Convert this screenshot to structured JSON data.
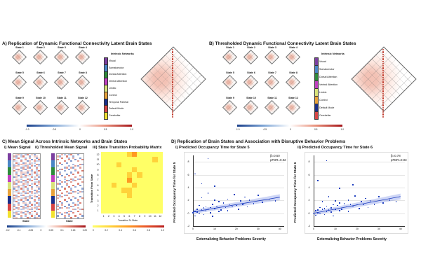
{
  "panelA": {
    "title": "A) Replication of Dynamic Functional Connectivity Latent Brain States",
    "states": [
      "State 1",
      "State 2",
      "State 3",
      "State 4",
      "State 5",
      "State 6",
      "State 7",
      "State 8",
      "State 9",
      "State 10",
      "State 11",
      "State 12"
    ],
    "networks_title": "Intrinsic Networks",
    "networks": [
      "Visual",
      "Somatomotor",
      "Dorsal Attention",
      "Ventral Attention",
      "Limbic",
      "Control",
      "Temporal Parietal",
      "Default Mode",
      "Cerebellar"
    ],
    "colorbar_ticks": [
      "-1.0",
      "-0.5",
      "0",
      "0.5",
      "1.0"
    ]
  },
  "panelB": {
    "title": "B) Thresholded Dynamic Functional Connectivity Latent Brain States",
    "states": [
      "State 1",
      "State 2",
      "State 3",
      "State 4",
      "State 5",
      "State 6",
      "State 7",
      "State 8",
      "State 9",
      "State 10",
      "State 11",
      "State 12"
    ],
    "networks_title": "Intrinsic Networks",
    "networks": [
      "Visual",
      "Somatomotor",
      "Dorsal Attention",
      "Ventral Attention",
      "Limbic",
      "Control",
      "Default Mode",
      "Cerebellar"
    ],
    "colorbar_ticks": [
      "-1.0",
      "-0.5",
      "0",
      "0.5",
      "1.0"
    ]
  },
  "network_colors": [
    "#7b3fa0",
    "#4a86c6",
    "#2e8b3a",
    "#c040c0",
    "#d8e27a",
    "#e8a23a",
    "#1a2f8a",
    "#d64545",
    "#f2e230"
  ],
  "panelC": {
    "title": "C) Mean Signal Across Intrinsic Networks and Brain States",
    "sub_i": "i) Mean Signal",
    "sub_ii": "ii) Thresholded Mean Signal",
    "sub_iii": "iii) State Transition Probability Matrix",
    "xlabel_state": "State",
    "colorbar_i_ticks": [
      "-0.2",
      "-0.1",
      "-0.05",
      "0",
      "0.05",
      "0.1",
      "0.15",
      "0.20"
    ],
    "colorbar_iii_ticks": [
      "0",
      "0.2",
      "0.4",
      "0.6",
      "0.8",
      "1.0"
    ],
    "transition_ylabel": "Transition From State",
    "transition_xlabel": "Transition To State",
    "transition_ticks": [
      "1",
      "2",
      "3",
      "4",
      "5",
      "6",
      "7",
      "8",
      "9",
      "10",
      "11",
      "12"
    ]
  },
  "panelD": {
    "title": "D) Replication of Brain States and Association with Disruptive Behavior Problems",
    "plots": [
      {
        "subtitle": "i) Predicted Occupancy Time for State 5",
        "beta": "β=0.60",
        "p": "pFDR=0.02",
        "ylabel": "Predicted Occupancy Time for State 5",
        "xlabel": "Externalizing Behavior Problems Severity"
      },
      {
        "subtitle": "ii) Predicted Occupancy Time for State 6",
        "beta": "β=0.78",
        "p": "pFDR=0.03",
        "ylabel": "Predicted Occupancy Time for State 6",
        "xlabel": "Externalizing Behavior Problems Severity"
      }
    ],
    "x_ticks": [
      "0",
      "10",
      "20",
      "30",
      "40"
    ],
    "y_ticks": [
      "-2",
      "0",
      "2",
      "4",
      "6",
      "8"
    ]
  },
  "chart_data": [
    {
      "type": "heatmap",
      "title": "iii) State Transition Probability Matrix",
      "xlabel": "Transition To State",
      "ylabel": "Transition From State",
      "categories": [
        "1",
        "2",
        "3",
        "4",
        "5",
        "6",
        "7",
        "8",
        "9",
        "10",
        "11",
        "12"
      ],
      "values": [
        [
          0.1,
          0.1,
          0.1,
          0.1,
          0.2,
          0.3,
          0.6,
          0.2,
          0.1,
          0.1,
          0.1,
          0.1
        ],
        [
          0.1,
          0.2,
          0.1,
          0.1,
          0.1,
          0.2,
          0.2,
          0.1,
          0.1,
          0.1,
          0.3,
          0.1
        ],
        [
          0.1,
          0.1,
          0.1,
          0.3,
          0.2,
          0.1,
          0.1,
          0.1,
          0.2,
          0.1,
          0.1,
          0.1
        ],
        [
          0.2,
          0.1,
          0.1,
          0.1,
          0.1,
          0.1,
          0.3,
          0.1,
          0.1,
          0.1,
          0.1,
          0.2
        ],
        [
          0.1,
          0.1,
          0.1,
          0.1,
          0.2,
          0.3,
          0.1,
          0.4,
          0.1,
          0.1,
          0.1,
          0.1
        ],
        [
          0.1,
          0.1,
          0.1,
          0.2,
          0.1,
          0.5,
          0.1,
          0.1,
          0.1,
          0.2,
          0.1,
          0.1
        ],
        [
          0.1,
          0.1,
          0.3,
          0.1,
          0.1,
          0.1,
          0.4,
          0.1,
          0.1,
          0.1,
          0.1,
          0.1
        ],
        [
          0.1,
          0.1,
          0.1,
          0.1,
          0.4,
          0.3,
          0.1,
          0.1,
          0.1,
          0.1,
          0.1,
          0.1
        ],
        [
          0.1,
          0.1,
          0.1,
          0.1,
          0.1,
          0.3,
          0.1,
          0.1,
          0.1,
          0.1,
          0.1,
          0.1
        ],
        [
          0.1,
          0.1,
          0.2,
          0.1,
          0.1,
          0.1,
          0.1,
          0.1,
          0.1,
          0.2,
          0.1,
          0.1
        ],
        [
          0.1,
          0.1,
          0.1,
          0.1,
          0.1,
          0.2,
          0.1,
          0.1,
          0.1,
          0.1,
          0.1,
          0.1
        ],
        [
          0.1,
          0.2,
          0.1,
          0.1,
          0.1,
          0.1,
          0.1,
          0.1,
          0.1,
          0.1,
          0.1,
          0.1
        ]
      ],
      "colorscale": [
        "#ffff66",
        "#ffd23a",
        "#ff9a22",
        "#e8552a",
        "#b81f1f"
      ]
    },
    {
      "type": "scatter",
      "title": "i) Predicted Occupancy Time for State 5",
      "xlabel": "Externalizing Behavior Problems Severity",
      "ylabel": "Predicted Occupancy Time for State 5",
      "xlim": [
        0,
        42
      ],
      "ylim": [
        -2,
        9
      ],
      "fit": {
        "x": [
          0,
          40
        ],
        "y": [
          0.2,
          2.5
        ]
      },
      "points": [
        [
          0,
          0.1
        ],
        [
          1,
          0.3
        ],
        [
          1,
          -0.4
        ],
        [
          2,
          0.6
        ],
        [
          2,
          0.2
        ],
        [
          3,
          1.2
        ],
        [
          3,
          0.0
        ],
        [
          4,
          0.5
        ],
        [
          4,
          2.4
        ],
        [
          5,
          0.8
        ],
        [
          5,
          -0.2
        ],
        [
          6,
          1.0
        ],
        [
          6,
          0.4
        ],
        [
          7,
          3.1
        ],
        [
          7,
          0.6
        ],
        [
          8,
          0.9
        ],
        [
          8,
          0.1
        ],
        [
          9,
          1.4
        ],
        [
          9,
          -0.5
        ],
        [
          10,
          0.7
        ],
        [
          10,
          2.0
        ],
        [
          11,
          1.1
        ],
        [
          12,
          0.3
        ],
        [
          12,
          1.8
        ],
        [
          13,
          0.5
        ],
        [
          14,
          1.6
        ],
        [
          15,
          0.9
        ],
        [
          16,
          2.2
        ],
        [
          16,
          0.4
        ],
        [
          17,
          1.3
        ],
        [
          18,
          1.0
        ],
        [
          19,
          2.9
        ],
        [
          20,
          1.2
        ],
        [
          21,
          0.6
        ],
        [
          22,
          1.9
        ],
        [
          23,
          1.4
        ],
        [
          24,
          2.5
        ],
        [
          25,
          1.0
        ],
        [
          26,
          2.0
        ],
        [
          28,
          1.5
        ],
        [
          30,
          2.8
        ],
        [
          32,
          1.7
        ],
        [
          35,
          2.1
        ],
        [
          38,
          1.9
        ],
        [
          7,
          8.5
        ],
        [
          4,
          4.6
        ],
        [
          10,
          4.2
        ],
        [
          1,
          6.1
        ]
      ]
    },
    {
      "type": "scatter",
      "title": "ii) Predicted Occupancy Time for State 6",
      "xlabel": "Externalizing Behavior Problems Severity",
      "ylabel": "Predicted Occupancy Time for State 6",
      "xlim": [
        0,
        42
      ],
      "ylim": [
        -2,
        9
      ],
      "fit": {
        "x": [
          0,
          40
        ],
        "y": [
          0.0,
          2.6
        ]
      },
      "points": [
        [
          0,
          0.0
        ],
        [
          1,
          0.4
        ],
        [
          1,
          -0.3
        ],
        [
          2,
          0.5
        ],
        [
          2,
          0.1
        ],
        [
          3,
          0.9
        ],
        [
          3,
          -0.1
        ],
        [
          4,
          0.6
        ],
        [
          4,
          1.8
        ],
        [
          5,
          0.7
        ],
        [
          5,
          -0.2
        ],
        [
          6,
          1.1
        ],
        [
          6,
          0.3
        ],
        [
          7,
          2.6
        ],
        [
          7,
          0.5
        ],
        [
          8,
          0.8
        ],
        [
          8,
          0.2
        ],
        [
          9,
          1.3
        ],
        [
          9,
          -0.4
        ],
        [
          10,
          0.6
        ],
        [
          10,
          1.9
        ],
        [
          11,
          1.2
        ],
        [
          12,
          0.4
        ],
        [
          12,
          1.6
        ],
        [
          13,
          0.6
        ],
        [
          14,
          1.5
        ],
        [
          15,
          1.0
        ],
        [
          16,
          2.0
        ],
        [
          16,
          0.3
        ],
        [
          17,
          1.4
        ],
        [
          18,
          1.1
        ],
        [
          19,
          2.7
        ],
        [
          20,
          1.3
        ],
        [
          21,
          0.7
        ],
        [
          22,
          1.8
        ],
        [
          23,
          1.3
        ],
        [
          24,
          2.3
        ],
        [
          25,
          0.9
        ],
        [
          26,
          1.9
        ],
        [
          28,
          1.4
        ],
        [
          30,
          2.6
        ],
        [
          32,
          1.6
        ],
        [
          35,
          2.0
        ],
        [
          38,
          1.8
        ],
        [
          6,
          8.2
        ],
        [
          2,
          5.1
        ],
        [
          12,
          3.9
        ],
        [
          18,
          4.4
        ]
      ]
    }
  ]
}
